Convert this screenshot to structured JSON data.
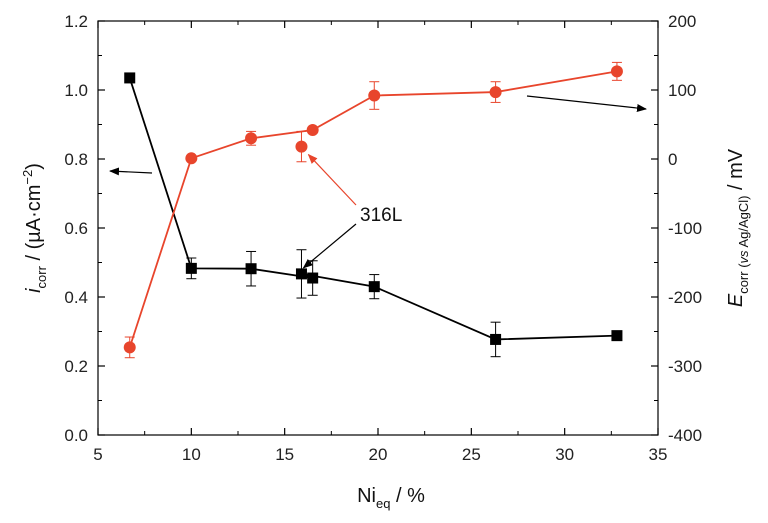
{
  "chart_data": {
    "type": "scatter",
    "title": "",
    "grid": false,
    "x_axis": {
      "label_main": "Ni",
      "label_sub": "eq",
      "label_suffix": " / %",
      "range": [
        5,
        35
      ],
      "ticks": [
        5,
        10,
        15,
        20,
        25,
        30,
        35
      ]
    },
    "y_left_axis": {
      "label_italic": "i",
      "label_sub": "corr",
      "label_suffix": " / (µA·cm",
      "label_sup": "−2",
      "label_end": ")",
      "range": [
        0,
        1.2
      ],
      "ticks": [
        "0.0",
        "0.2",
        "0.4",
        "0.6",
        "0.8",
        "1.0",
        "1.2"
      ]
    },
    "y_right_axis": {
      "label_main": "E",
      "label_sub_plain": "corr (",
      "label_sub_italic": "vs",
      "label_sub_rest": " Ag/AgCl)",
      "label_suffix": " / mV",
      "range": [
        -400,
        200
      ],
      "ticks": [
        "-400",
        "-300",
        "-200",
        "-100",
        "0",
        "100",
        "200"
      ]
    },
    "series": [
      {
        "axis": "left",
        "color": "#000000",
        "marker": "square",
        "x": [
          6.7,
          10.0,
          13.2,
          15.9,
          16.5,
          19.8,
          26.3,
          32.8
        ],
        "y": [
          1.035,
          0.483,
          0.482,
          0.467,
          0.455,
          0.43,
          0.277,
          0.288
        ],
        "err": [
          0.0,
          0.03,
          0.05,
          0.07,
          0.05,
          0.035,
          0.05,
          0.0
        ],
        "line_order": [
          0,
          1,
          2,
          4,
          3,
          5,
          6,
          7
        ]
      },
      {
        "axis": "right",
        "color": "#e8452c",
        "marker": "circle",
        "x": [
          6.7,
          10.0,
          13.2,
          15.9,
          16.5,
          19.8,
          26.3,
          32.8
        ],
        "y": [
          -273,
          1,
          30,
          18,
          42,
          92,
          97,
          127
        ],
        "err": [
          15,
          0,
          10,
          22,
          0,
          20,
          15,
          13
        ],
        "line_order": [
          0,
          1,
          2,
          4,
          5,
          6,
          7
        ],
        "isolated_index": 3
      }
    ],
    "annotations": [
      {
        "text": "316L"
      }
    ]
  }
}
